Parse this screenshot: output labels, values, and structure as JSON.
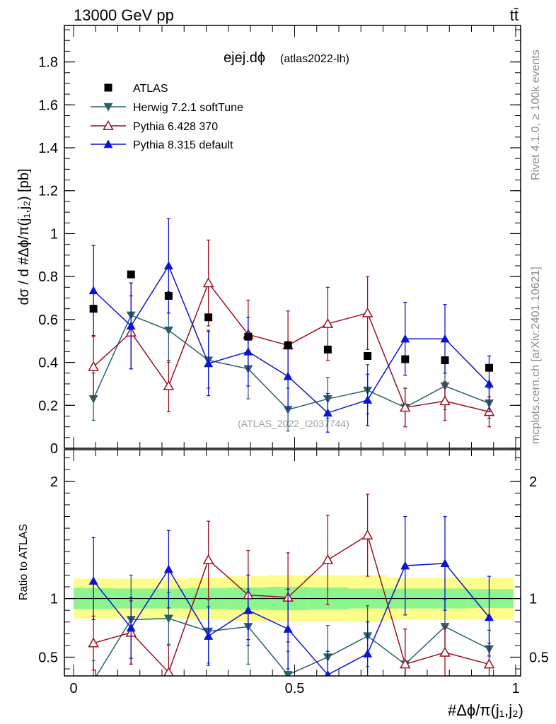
{
  "header": {
    "energy_label": "13000 GeV pp",
    "process_label": "tt̄"
  },
  "side_labels": {
    "rivet": "Rivet 4.1.0, ≥ 100k events",
    "mcplots": "mcplots.cern.ch [arXiv:2401.10621]"
  },
  "chart_data": [
    {
      "type": "line",
      "title_main": "ejej.dϕ",
      "title_sub": "(atlas2022-lh)",
      "watermark": "(ATLAS_2022_I2037744)",
      "ylabel": "dσ / d #Δϕ/π(j₁,j₂) [pb]",
      "xlim": [
        0,
        1
      ],
      "ylim": [
        0,
        1.97
      ],
      "y_ticks": [
        0,
        0.2,
        0.4,
        0.6,
        0.8,
        1,
        1.2,
        1.4,
        1.6,
        1.8
      ],
      "y_tick_labels": [
        "0",
        "0.2",
        "0.4",
        "0.6",
        "0.8",
        "1",
        "1.2",
        "1.4",
        "1.6",
        "1.8"
      ],
      "legend_position": "top-left",
      "x": [
        0.045,
        0.13,
        0.215,
        0.305,
        0.395,
        0.485,
        0.575,
        0.665,
        0.75,
        0.84,
        0.94
      ],
      "series": [
        {
          "name": "ATLAS",
          "color": "#000000",
          "marker": "square",
          "values": [
            0.65,
            0.81,
            0.71,
            0.61,
            0.52,
            0.48,
            0.46,
            0.43,
            0.415,
            0.41,
            0.375
          ]
        },
        {
          "name": "Herwig 7.2.1 softTune",
          "color": "#2a6068",
          "marker": "triangle-down",
          "values": [
            0.23,
            0.62,
            0.55,
            0.41,
            0.37,
            0.18,
            0.23,
            0.27,
            0.19,
            0.29,
            0.21
          ],
          "err_low": [
            0.1,
            0.25,
            0.15,
            0.13,
            0.14,
            0.1,
            0.09,
            0.11,
            0.09,
            0.11,
            0.07
          ],
          "err_high": [
            0.12,
            0.15,
            0.18,
            0.14,
            0.14,
            0.1,
            0.1,
            0.12,
            0.09,
            0.11,
            0.07
          ]
        },
        {
          "name": "Pythia 6.428 370",
          "color": "#9b1020",
          "marker": "triangle-open",
          "values": [
            0.38,
            0.54,
            0.29,
            0.77,
            0.53,
            0.48,
            0.58,
            0.63,
            0.19,
            0.22,
            0.17
          ],
          "err_low": [
            0.14,
            0.17,
            0.12,
            0.2,
            0.16,
            0.16,
            0.17,
            0.17,
            0.09,
            0.09,
            0.07
          ],
          "err_high": [
            0.14,
            0.17,
            0.12,
            0.2,
            0.16,
            0.16,
            0.17,
            0.17,
            0.09,
            0.09,
            0.07
          ]
        },
        {
          "name": "Pythia 8.315 default",
          "color": "#0a14d2",
          "marker": "triangle-up",
          "values": [
            0.735,
            0.57,
            0.85,
            0.395,
            0.45,
            0.335,
            0.165,
            0.225,
            0.51,
            0.51,
            0.3
          ],
          "err_low": [
            0.21,
            0.2,
            0.22,
            0.15,
            0.16,
            0.15,
            0.09,
            0.12,
            0.17,
            0.16,
            0.13
          ],
          "err_high": [
            0.21,
            0.2,
            0.22,
            0.15,
            0.16,
            0.15,
            0.09,
            0.12,
            0.17,
            0.16,
            0.13
          ]
        }
      ]
    },
    {
      "type": "line",
      "ylabel": "Ratio to ATLAS",
      "xlabel": "#Δϕ/π(j₁,j₂)",
      "xlim": [
        0,
        1
      ],
      "ylim": [
        0.34,
        2.27
      ],
      "x_ticks": [
        0,
        0.5,
        1
      ],
      "x_tick_labels": [
        "0",
        "0.5",
        "1"
      ],
      "y_ticks": [
        0.5,
        1,
        2
      ],
      "y_tick_labels": [
        "0.5",
        "1",
        "2"
      ],
      "reference_line": 1,
      "x": [
        0.045,
        0.13,
        0.215,
        0.305,
        0.395,
        0.485,
        0.575,
        0.665,
        0.75,
        0.84,
        0.94
      ],
      "band_edges": [
        0,
        0.09,
        0.17,
        0.26,
        0.35,
        0.44,
        0.53,
        0.62,
        0.71,
        0.8,
        0.89,
        0.995
      ],
      "band_inner": [
        0.09,
        0.085,
        0.085,
        0.09,
        0.095,
        0.1,
        0.095,
        0.085,
        0.085,
        0.085,
        0.08
      ],
      "band_outer": [
        0.17,
        0.17,
        0.17,
        0.18,
        0.19,
        0.2,
        0.2,
        0.2,
        0.18,
        0.18,
        0.18
      ],
      "series": [
        {
          "name": "Herwig 7.2.1 softTune",
          "color": "#2a6068",
          "marker": "triangle-down",
          "values": [
            0.3,
            0.82,
            0.83,
            0.72,
            0.76,
            0.35,
            0.5,
            0.68,
            0.44,
            0.76,
            0.57
          ],
          "err_low": [
            0.17,
            0.38,
            0.22,
            0.27,
            0.32,
            0.2,
            0.2,
            0.26,
            0.18,
            0.23,
            0.16
          ],
          "err_high": [
            0.17,
            0.38,
            0.22,
            0.27,
            0.32,
            0.2,
            0.27,
            0.26,
            0.3,
            0.23,
            0.16
          ]
        },
        {
          "name": "Pythia 6.428 370",
          "color": "#9b1020",
          "marker": "triangle-open",
          "values": [
            0.62,
            0.71,
            0.37,
            1.33,
            1.03,
            1.01,
            1.33,
            1.54,
            0.44,
            0.54,
            0.44
          ],
          "err_low": [
            0.23,
            0.27,
            0.23,
            0.33,
            0.38,
            0.38,
            0.38,
            0.35,
            0.3,
            0.22,
            0.18
          ],
          "err_high": [
            0.23,
            0.27,
            0.23,
            0.33,
            0.38,
            0.38,
            0.38,
            0.35,
            0.3,
            0.22,
            0.18
          ]
        },
        {
          "name": "Pythia 8.315 default",
          "color": "#0a14d2",
          "marker": "triangle-up",
          "values": [
            1.15,
            0.75,
            1.25,
            0.68,
            0.9,
            0.74,
            0.35,
            0.53,
            1.28,
            1.3,
            0.84
          ],
          "err_low": [
            0.33,
            0.26,
            0.33,
            0.25,
            0.3,
            0.34,
            0.2,
            0.27,
            0.42,
            0.4,
            0.33
          ],
          "err_high": [
            0.37,
            0.26,
            0.33,
            0.25,
            0.3,
            0.34,
            0.2,
            0.27,
            0.42,
            0.4,
            0.35
          ]
        }
      ]
    }
  ]
}
